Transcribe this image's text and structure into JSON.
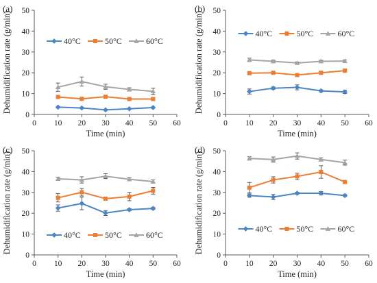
{
  "chart_data": [
    {
      "type": "line",
      "panel_label": "(a)",
      "x": [
        10,
        20,
        30,
        40,
        50
      ],
      "xlabel": "Time (min)",
      "ylabel": "Dehumidification rate (g/min)",
      "xlim": [
        0,
        60
      ],
      "ylim": [
        0,
        50
      ],
      "xticks": [
        0,
        10,
        20,
        30,
        40,
        50,
        60
      ],
      "yticks": [
        0,
        10,
        20,
        30,
        40,
        50
      ],
      "legend_position": "upper-center",
      "series": [
        {
          "name": "40°C",
          "color": "#4a86c5",
          "marker": "diamond",
          "values": [
            3.5,
            3.1,
            2.2,
            2.7,
            3.3
          ],
          "errors": [
            0.3,
            0.3,
            0.3,
            0.3,
            0.3
          ]
        },
        {
          "name": "50°C",
          "color": "#ed7d31",
          "marker": "square",
          "values": [
            8.4,
            7.5,
            8.5,
            7.4,
            7.4
          ],
          "errors": [
            0.4,
            0.4,
            0.4,
            0.4,
            0.4
          ]
        },
        {
          "name": "60°C",
          "color": "#a5a5a5",
          "marker": "triangle",
          "values": [
            13.1,
            15.8,
            13.3,
            12.0,
            11.1
          ],
          "errors": [
            2.0,
            2.2,
            1.2,
            0.8,
            1.5
          ]
        }
      ]
    },
    {
      "type": "line",
      "panel_label": "(b)",
      "x": [
        10,
        20,
        30,
        40,
        50
      ],
      "xlabel": "Time (min)",
      "ylabel": "Dehumidification rate (g/min)",
      "xlim": [
        0,
        60
      ],
      "ylim": [
        0,
        50
      ],
      "xticks": [
        0,
        10,
        20,
        30,
        40,
        50,
        60
      ],
      "yticks": [
        0,
        10,
        20,
        30,
        40,
        50
      ],
      "legend_position": "upper-center",
      "series": [
        {
          "name": "40°C",
          "color": "#4a86c5",
          "marker": "diamond",
          "values": [
            11.0,
            12.6,
            13.0,
            11.3,
            10.8
          ],
          "errors": [
            1.2,
            0.6,
            1.2,
            0.5,
            0.8
          ]
        },
        {
          "name": "50°C",
          "color": "#ed7d31",
          "marker": "square",
          "values": [
            19.8,
            20.0,
            18.9,
            20.0,
            21.0
          ],
          "errors": [
            0.5,
            0.5,
            0.5,
            0.5,
            0.8
          ]
        },
        {
          "name": "60°C",
          "color": "#a5a5a5",
          "marker": "triangle",
          "values": [
            26.2,
            25.5,
            24.7,
            25.5,
            25.6
          ],
          "errors": [
            0.8,
            0.5,
            0.5,
            0.5,
            0.5
          ]
        }
      ]
    },
    {
      "type": "line",
      "panel_label": "(c)",
      "x": [
        10,
        20,
        30,
        40,
        50
      ],
      "xlabel": "Time (min)",
      "ylabel": "Dehumidification rate (g/min)",
      "xlim": [
        0,
        60
      ],
      "ylim": [
        0,
        50
      ],
      "xticks": [
        0,
        10,
        20,
        30,
        40,
        50,
        60
      ],
      "yticks": [
        0,
        10,
        20,
        30,
        40,
        50
      ],
      "legend_position": "lower-center",
      "series": [
        {
          "name": "40°C",
          "color": "#4a86c5",
          "marker": "diamond",
          "values": [
            22.5,
            24.7,
            20.1,
            21.7,
            22.3
          ],
          "errors": [
            1.5,
            3.0,
            1.2,
            0.5,
            0.5
          ]
        },
        {
          "name": "50°C",
          "color": "#ed7d31",
          "marker": "square",
          "values": [
            27.4,
            30.1,
            27.0,
            28.0,
            30.8
          ],
          "errors": [
            2.0,
            1.8,
            0.5,
            2.0,
            1.6
          ]
        },
        {
          "name": "60°C",
          "color": "#a5a5a5",
          "marker": "triangle",
          "values": [
            36.5,
            36.0,
            37.8,
            36.3,
            35.2
          ],
          "errors": [
            0.8,
            1.5,
            1.2,
            0.8,
            0.8
          ]
        }
      ]
    },
    {
      "type": "line",
      "panel_label": "(d)",
      "x": [
        10,
        20,
        30,
        40,
        50
      ],
      "xlabel": "Time (min)",
      "ylabel": "Dehumidification rate (g/min)",
      "xlim": [
        0,
        60
      ],
      "ylim": [
        0,
        50
      ],
      "xticks": [
        0,
        10,
        20,
        30,
        40,
        50,
        60
      ],
      "yticks": [
        0,
        10,
        20,
        30,
        40,
        50
      ],
      "legend_position": "lower-center",
      "series": [
        {
          "name": "40°C",
          "color": "#4a86c5",
          "marker": "diamond",
          "values": [
            28.5,
            27.8,
            29.6,
            29.6,
            28.5
          ],
          "errors": [
            0.8,
            1.2,
            0.5,
            0.8,
            0.5
          ]
        },
        {
          "name": "50°C",
          "color": "#ed7d31",
          "marker": "square",
          "values": [
            32.3,
            36.0,
            37.7,
            39.8,
            35.0
          ],
          "errors": [
            2.5,
            1.5,
            1.5,
            3.0,
            0.5
          ]
        },
        {
          "name": "60°C",
          "color": "#a5a5a5",
          "marker": "triangle",
          "values": [
            46.3,
            45.8,
            47.5,
            45.8,
            44.3
          ],
          "errors": [
            0.8,
            1.2,
            1.5,
            0.8,
            1.2
          ]
        }
      ]
    }
  ]
}
